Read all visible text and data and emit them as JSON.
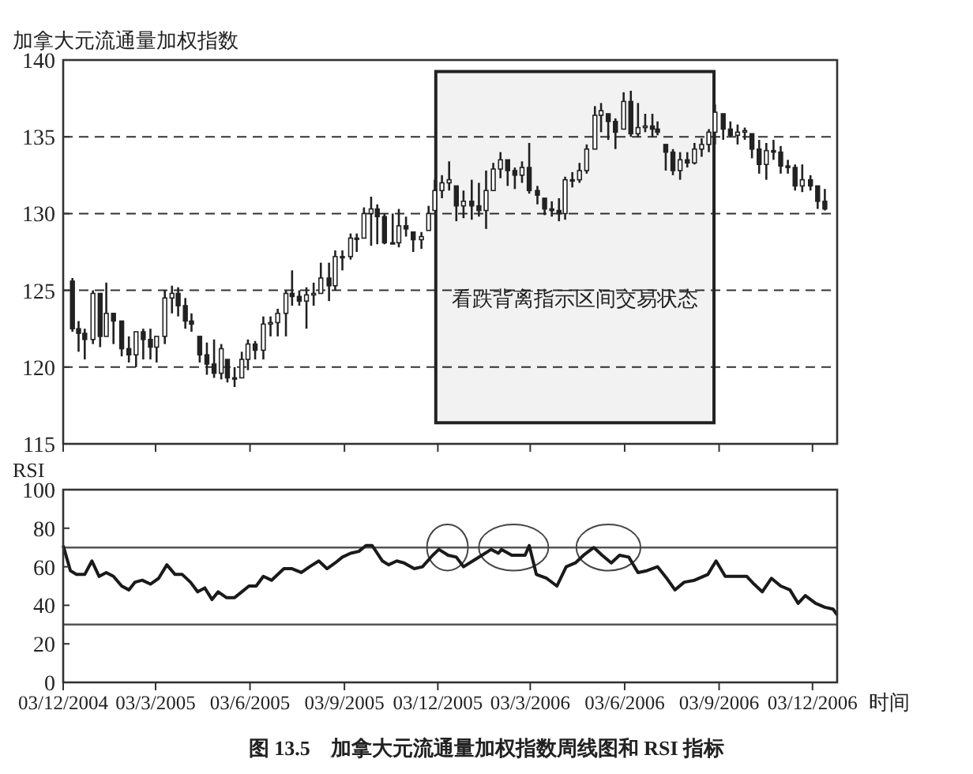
{
  "chart_data": [
    {
      "type": "candlestick",
      "ylabel": "加拿大元流通量加权指数",
      "x": [
        "2004-12-12",
        "2004-12-18",
        "2004-12-24",
        "2005-01-01",
        "2005-01-08",
        "2005-01-14",
        "2005-01-21",
        "2005-01-29",
        "2005-02-05",
        "2005-02-12",
        "2005-02-19",
        "2005-02-26",
        "2005-03-04",
        "2005-03-12",
        "2005-03-19",
        "2005-03-25",
        "2005-04-01",
        "2005-04-07",
        "2005-04-15",
        "2005-04-22",
        "2005-04-29",
        "2005-05-06",
        "2005-05-12",
        "2005-05-19",
        "2005-05-26",
        "2005-06-01",
        "2005-06-08",
        "2005-06-16",
        "2005-06-23",
        "2005-06-30",
        "2005-07-08",
        "2005-07-14",
        "2005-07-21",
        "2005-07-28",
        "2005-08-04",
        "2005-08-11",
        "2005-08-19",
        "2005-08-25",
        "2005-09-01",
        "2005-09-09",
        "2005-09-15",
        "2005-09-22",
        "2005-09-29",
        "2005-10-05",
        "2005-10-12",
        "2005-10-20",
        "2005-10-26",
        "2005-11-02",
        "2005-11-09",
        "2005-11-17",
        "2005-11-24",
        "2005-11-30",
        "2005-12-07",
        "2005-12-14",
        "2005-12-21",
        "2005-12-28",
        "2006-01-05",
        "2006-01-12",
        "2006-01-19",
        "2006-01-26",
        "2006-02-02",
        "2006-02-09",
        "2006-02-16",
        "2006-02-23",
        "2006-03-02",
        "2006-03-10",
        "2006-03-17",
        "2006-03-24",
        "2006-03-31",
        "2006-04-06",
        "2006-04-13",
        "2006-04-20",
        "2006-04-27",
        "2006-05-05",
        "2006-05-11",
        "2006-05-18",
        "2006-05-25",
        "2006-06-02",
        "2006-06-09",
        "2006-06-16",
        "2006-06-23",
        "2006-06-30",
        "2006-07-05",
        "2006-07-13",
        "2006-07-20",
        "2006-07-27",
        "2006-08-03",
        "2006-08-10",
        "2006-08-17",
        "2006-08-24",
        "2006-08-30",
        "2006-09-07",
        "2006-09-14",
        "2006-09-21",
        "2006-09-28",
        "2006-10-05",
        "2006-10-12",
        "2006-10-19",
        "2006-10-26",
        "2006-11-02",
        "2006-11-09",
        "2006-11-16",
        "2006-11-23",
        "2006-12-01",
        "2006-12-08",
        "2006-12-15"
      ],
      "ohlc": [
        [
          125.6,
          125.8,
          122.3,
          122.5
        ],
        [
          122.5,
          123,
          121,
          122.2
        ],
        [
          122.2,
          122.5,
          120.5,
          121.8
        ],
        [
          121.8,
          125,
          121.5,
          124.8
        ],
        [
          124.8,
          124.8,
          121.3,
          122
        ],
        [
          122,
          125.5,
          122,
          123.5
        ],
        [
          123.5,
          123.5,
          121.5,
          123
        ],
        [
          123,
          123,
          120.7,
          121.2
        ],
        [
          121.2,
          122,
          120.3,
          120.8
        ],
        [
          120.8,
          122.3,
          120,
          122.3
        ],
        [
          122.3,
          122.5,
          120.5,
          121.8
        ],
        [
          121.8,
          122.5,
          120.5,
          121.3
        ],
        [
          121.3,
          122,
          120.3,
          122
        ],
        [
          122,
          125,
          121.5,
          124.5
        ],
        [
          124.5,
          125.3,
          123.5,
          124.8
        ],
        [
          124.8,
          125.2,
          123.3,
          124
        ],
        [
          124,
          124.5,
          122.5,
          123
        ],
        [
          123,
          123.5,
          122.3,
          122.8
        ],
        [
          122,
          122,
          120.3,
          120.8
        ],
        [
          120.8,
          121.6,
          119.5,
          120.2
        ],
        [
          120.2,
          121.8,
          119.3,
          119.6
        ],
        [
          119.6,
          121.5,
          119.2,
          121.2
        ],
        [
          120.5,
          120.5,
          119,
          119.3
        ],
        [
          119.3,
          120,
          118.7,
          119.3
        ],
        [
          119.3,
          121,
          119.3,
          120.5
        ],
        [
          120.5,
          121.8,
          119.8,
          121.5
        ],
        [
          121.5,
          121.7,
          120.5,
          121.1
        ],
        [
          121.1,
          123.3,
          120.5,
          122.8
        ],
        [
          122.8,
          123.3,
          122,
          122.9
        ],
        [
          122.9,
          123.8,
          122,
          123.5
        ],
        [
          123.5,
          125,
          122,
          124.8
        ],
        [
          124.8,
          126.3,
          124,
          124.6
        ],
        [
          124.6,
          125,
          124,
          124.3
        ],
        [
          124.3,
          125.2,
          122.5,
          124.7
        ],
        [
          124.7,
          125.5,
          124,
          124.8
        ],
        [
          124.8,
          126.8,
          124.8,
          125.8
        ],
        [
          125.8,
          126.8,
          124.3,
          125.3
        ],
        [
          125.3,
          127.6,
          125,
          127.2
        ],
        [
          127.2,
          127.6,
          126.3,
          127.2
        ],
        [
          127.2,
          128.7,
          127,
          128.4
        ],
        [
          128.4,
          128.7,
          127.5,
          128.4
        ],
        [
          128.4,
          130.4,
          128.4,
          130
        ],
        [
          130,
          131.1,
          127.9,
          130.3
        ],
        [
          130.3,
          130.6,
          128,
          129.8
        ],
        [
          129.8,
          130,
          128,
          128.1
        ],
        [
          128.1,
          130,
          128,
          128.1
        ],
        [
          128.1,
          130.3,
          127.8,
          129.2
        ],
        [
          129.2,
          129.8,
          128.5,
          129
        ],
        [
          128.8,
          128.8,
          127.5,
          128.3
        ],
        [
          128.3,
          128.8,
          127.7,
          128.5
        ],
        [
          128.9,
          130.5,
          128.9,
          130
        ],
        [
          130.2,
          132.2,
          130.2,
          131.5
        ],
        [
          131.5,
          132.5,
          131,
          132
        ],
        [
          132,
          133.4,
          131.5,
          132.2
        ],
        [
          131.8,
          131.8,
          129.5,
          130.5
        ],
        [
          130.5,
          131.5,
          129.7,
          130.8
        ],
        [
          130.8,
          132.2,
          129.6,
          130.5
        ],
        [
          130.5,
          132,
          129.8,
          130.2
        ],
        [
          130.2,
          132.8,
          129,
          131.5
        ],
        [
          131.5,
          133.3,
          131.5,
          132.9
        ],
        [
          132.9,
          134,
          132.3,
          133.5
        ],
        [
          133.5,
          133.5,
          131.8,
          132.8
        ],
        [
          132.8,
          133,
          131.6,
          132.5
        ],
        [
          132.5,
          133.4,
          132,
          133
        ],
        [
          133,
          134.6,
          131.3,
          131.5
        ],
        [
          131.5,
          131.8,
          130.6,
          131.2
        ],
        [
          131,
          131,
          129.9,
          130.3
        ],
        [
          130.3,
          130.8,
          129.8,
          130.2
        ],
        [
          130.2,
          131,
          129.5,
          130
        ],
        [
          130,
          132.4,
          129.6,
          132.2
        ],
        [
          132.2,
          132.7,
          131.7,
          132.2
        ],
        [
          132.2,
          133.3,
          132,
          132.8
        ],
        [
          132.8,
          134.5,
          132.6,
          134.2
        ],
        [
          134.2,
          137,
          134.2,
          136.4
        ],
        [
          136.4,
          137.2,
          135.3,
          136.7
        ],
        [
          136.5,
          136.5,
          134.8,
          136
        ],
        [
          136,
          136.2,
          134.2,
          135.3
        ],
        [
          135.5,
          137.9,
          135.5,
          137.3
        ],
        [
          137.3,
          138,
          135,
          135.2
        ],
        [
          135.2,
          137.2,
          135,
          135.6
        ],
        [
          135.6,
          136.5,
          135.3,
          135.7
        ],
        [
          135.7,
          136.5,
          135,
          135.5
        ],
        [
          135.5,
          136,
          135.1,
          135.3
        ],
        [
          134.5,
          134.5,
          132.8,
          134
        ],
        [
          134,
          134.2,
          132.5,
          132.8
        ],
        [
          132.8,
          134,
          132.2,
          133.5
        ],
        [
          133.5,
          134,
          133,
          133.3
        ],
        [
          133.3,
          134.6,
          133.2,
          134.2
        ],
        [
          134.2,
          134.9,
          133.7,
          134.5
        ],
        [
          134.5,
          135.5,
          134,
          135.3
        ],
        [
          135.3,
          137.1,
          134.5,
          136.6
        ],
        [
          136.5,
          136.5,
          134.8,
          135.5
        ],
        [
          135.5,
          136,
          135,
          135.1
        ],
        [
          135.1,
          135.8,
          134.5,
          135.3
        ],
        [
          135.3,
          135.6,
          134.8,
          135.4
        ],
        [
          135.2,
          135.2,
          133.6,
          134.2
        ],
        [
          134.2,
          134.8,
          132.6,
          133.2
        ],
        [
          133.2,
          134.6,
          132.2,
          134.1
        ],
        [
          134.1,
          134.8,
          133.5,
          134
        ],
        [
          134,
          134.4,
          132.6,
          133.1
        ],
        [
          133.1,
          133.5,
          132.6,
          133
        ],
        [
          133,
          133.2,
          131.5,
          131.8
        ],
        [
          131.8,
          133.2,
          131.4,
          132.2
        ],
        [
          132.2,
          132.5,
          131.5,
          131.8
        ],
        [
          131.8,
          131.8,
          130.3,
          130.8
        ],
        [
          130.8,
          131.6,
          130.2,
          130.3
        ]
      ],
      "xlim": [
        "2004-12-03",
        "2006-12-27"
      ],
      "xticks": [
        {
          "value": "2004-12-03",
          "label": null
        },
        {
          "value": "2005-03-03",
          "label": null
        },
        {
          "value": "2005-06-03",
          "label": null
        },
        {
          "value": "2005-09-03",
          "label": null
        },
        {
          "value": "2005-12-03",
          "label": null
        },
        {
          "value": "2006-03-03",
          "label": null
        },
        {
          "value": "2006-06-03",
          "label": null
        },
        {
          "value": "2006-09-03",
          "label": null
        },
        {
          "value": "2006-12-03",
          "label": null
        }
      ],
      "ylim": [
        115,
        140
      ],
      "yticks": [
        115,
        120,
        125,
        130,
        135,
        140
      ],
      "grid": "y",
      "tick_labels": "y",
      "bands": [
        {
          "axis": "x",
          "from": "2005-12-01",
          "to": "2006-08-29",
          "label": "看跌背离指示区间交易状态"
        }
      ]
    },
    {
      "type": "line",
      "ylabel": "RSI",
      "xlabel": "时间",
      "color": "#1a1a1a",
      "x": [
        "2004-12-03",
        "2004-12-10",
        "2004-12-16",
        "2004-12-24",
        "2004-12-31",
        "2005-01-07",
        "2005-01-14",
        "2005-01-21",
        "2005-01-29",
        "2005-02-05",
        "2005-02-11",
        "2005-02-18",
        "2005-02-26",
        "2005-03-06",
        "2005-03-14",
        "2005-03-22",
        "2005-03-29",
        "2005-04-06",
        "2005-04-13",
        "2005-04-20",
        "2005-04-27",
        "2005-05-03",
        "2005-05-11",
        "2005-05-19",
        "2005-05-26",
        "2005-06-02",
        "2005-06-09",
        "2005-06-16",
        "2005-06-24",
        "2005-07-06",
        "2005-07-14",
        "2005-07-23",
        "2005-07-31",
        "2005-08-09",
        "2005-08-17",
        "2005-08-25",
        "2005-09-01",
        "2005-09-09",
        "2005-09-17",
        "2005-09-24",
        "2005-09-30",
        "2005-10-10",
        "2005-10-16",
        "2005-10-24",
        "2005-10-31",
        "2005-11-10",
        "2005-11-18",
        "2005-11-28",
        "2005-12-04",
        "2005-12-13",
        "2005-12-21",
        "2005-12-28",
        "2006-01-06",
        "2006-01-15",
        "2006-01-24",
        "2006-01-31",
        "2006-02-03",
        "2006-02-13",
        "2006-02-21",
        "2006-02-26",
        "2006-03-02",
        "2006-03-09",
        "2006-03-19",
        "2006-03-29",
        "2006-04-07",
        "2006-04-16",
        "2006-04-24",
        "2006-05-04",
        "2006-05-12",
        "2006-05-21",
        "2006-05-29",
        "2006-06-07",
        "2006-06-16",
        "2006-06-25",
        "2006-07-05",
        "2006-07-14",
        "2006-07-22",
        "2006-07-31",
        "2006-08-10",
        "2006-08-23",
        "2006-08-31",
        "2006-09-09",
        "2006-09-18",
        "2006-09-30",
        "2006-10-07",
        "2006-10-15",
        "2006-10-24",
        "2006-11-02",
        "2006-11-11",
        "2006-11-19",
        "2006-11-26",
        "2006-12-06",
        "2006-12-15",
        "2006-12-23",
        "2006-12-27"
      ],
      "values": [
        71,
        58,
        56,
        56,
        63,
        55,
        57,
        55,
        50,
        48,
        52,
        53,
        51,
        54,
        61,
        56,
        56,
        52,
        47,
        49,
        43,
        47,
        44,
        44,
        47,
        50,
        50,
        55,
        53,
        59,
        59,
        57,
        60,
        63,
        59,
        62,
        65,
        67,
        68,
        71,
        71,
        63,
        61,
        63,
        62,
        59,
        60,
        66,
        69,
        66,
        65,
        60,
        63,
        66,
        69,
        67,
        69,
        66,
        66,
        66,
        71,
        56,
        54,
        50,
        60,
        62,
        66,
        70,
        66,
        62,
        66,
        65,
        57,
        58,
        60,
        54,
        48,
        52,
        53,
        56,
        63,
        55,
        55,
        55,
        51,
        47,
        54,
        50,
        48,
        41,
        45,
        41,
        39,
        38,
        35
      ],
      "xlim": [
        "2004-12-03",
        "2006-12-27"
      ],
      "xticks": [
        {
          "value": "2004-12-03",
          "label": "03/12/2004"
        },
        {
          "value": "2005-03-03",
          "label": "03/3/2005"
        },
        {
          "value": "2005-06-03",
          "label": "03/6/2005"
        },
        {
          "value": "2005-09-03",
          "label": "03/9/2005"
        },
        {
          "value": "2005-12-03",
          "label": "03/12/2005"
        },
        {
          "value": "2006-03-03",
          "label": "03/3/2006"
        },
        {
          "value": "2006-06-03",
          "label": "03/6/2006"
        },
        {
          "value": "2006-09-03",
          "label": "03/9/2006"
        },
        {
          "value": "2006-12-03",
          "label": "03/12/2006"
        }
      ],
      "ylim": [
        0,
        100
      ],
      "yticks": [
        0,
        20,
        40,
        60,
        80,
        100
      ],
      "ref_lines": [
        {
          "axis": "y",
          "value": 70
        },
        {
          "axis": "y",
          "value": 30
        }
      ],
      "annotations": [
        "图 13.5　加拿大元流通量加权指数周线图和 RSI 指标"
      ]
    }
  ]
}
